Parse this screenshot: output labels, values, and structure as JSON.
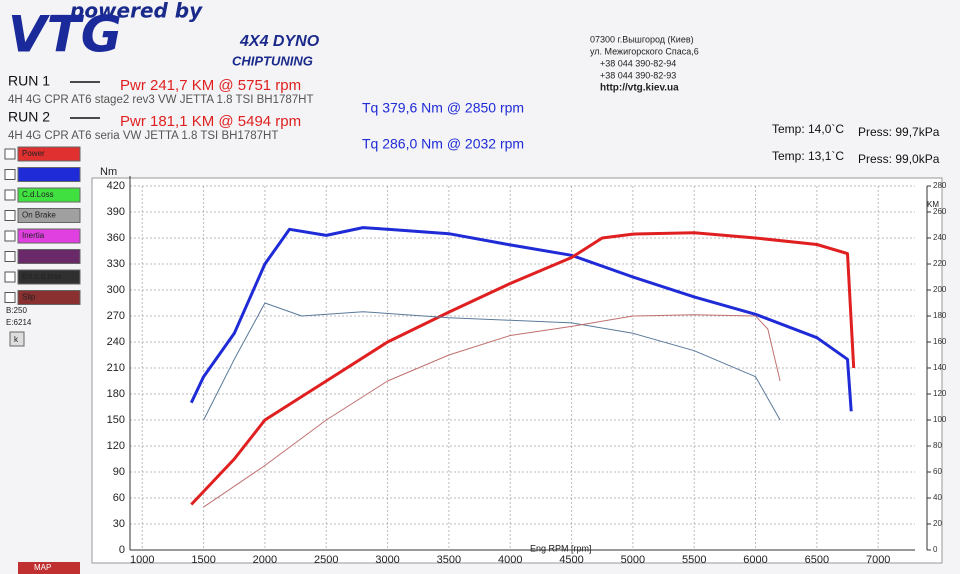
{
  "header": {
    "powered": "powered by",
    "logo": "VTG",
    "dyno": "4X4 DYNO",
    "chiptuning": "CHIPTUNING",
    "address": [
      "07300 г.Вышгород (Киев)",
      "ул. Межигорского Спаса,6",
      "+38 044 390-82-94",
      "+38 044 390-82-93",
      "http://vtg.kiev.ua"
    ]
  },
  "runs": [
    {
      "label": "RUN 1",
      "power": "Pwr  241,7 KM @ 5751 rpm",
      "torque": "Tq 379,6 Nm @ 2850 rpm",
      "desc": "4H 4G CPR  AT6  stage2 rev3 VW JETTA 1.8 TSI BH1787HT",
      "temp": "Temp: 14,0`C",
      "press": "Press: 99,7kPa"
    },
    {
      "label": "RUN 2",
      "power": "Pwr  181,1 KM @ 5494 rpm",
      "torque": "Tq 286,0 Nm @ 2032 rpm",
      "desc": "4H 4G CPR  AT6  seria VW JETTA 1.8 TSI BH1787HT",
      "temp": "Temp: 13,1`C",
      "press": "Press: 99,0kPa"
    }
  ],
  "panel": {
    "items": [
      {
        "label": "Power",
        "color": "#e03030"
      },
      {
        "label": "",
        "color": "#1f2bd6"
      },
      {
        "label": "C.d.Loss",
        "color": "#40e040"
      },
      {
        "label": "On Brake",
        "color": "#a0a0a0"
      },
      {
        "label": "Inertia",
        "color": "#e040e0"
      },
      {
        "label": "",
        "color": "#6a2a6a"
      },
      {
        "label": "Ert c.d.loss",
        "color": "#303030"
      },
      {
        "label": "Slip",
        "color": "#8a3030"
      }
    ],
    "b": "B:250",
    "e": "E:6214",
    "k": "k",
    "map": "MAP"
  },
  "chart_data": {
    "type": "line",
    "ylabel": "Nm",
    "y2label": "KM",
    "xlabel": "Eng RPM [rpm]",
    "grid": true,
    "xlim": [
      900,
      7300
    ],
    "xticks": [
      1000,
      1500,
      2000,
      2500,
      3000,
      3500,
      4000,
      4500,
      5000,
      5500,
      6000,
      6500,
      7000
    ],
    "ylim": [
      0,
      420
    ],
    "yticks": [
      0,
      30,
      60,
      90,
      120,
      150,
      180,
      210,
      240,
      270,
      300,
      330,
      360,
      390,
      420
    ],
    "y2lim": [
      0,
      280
    ],
    "y2ticks": [
      0,
      20,
      40,
      60,
      80,
      100,
      120,
      140,
      160,
      180,
      200,
      220,
      240,
      260,
      280
    ],
    "series": [
      {
        "color": "#1f2bd6",
        "width": 3,
        "x": [
          1400,
          1500,
          1750,
          2000,
          2200,
          2500,
          2800,
          3000,
          3500,
          4000,
          4500,
          5000,
          5500,
          6000,
          6500,
          6750,
          6780
        ],
        "values": [
          170,
          200,
          250,
          330,
          370,
          363,
          372,
          370,
          365,
          352,
          340,
          315,
          292,
          272,
          245,
          220,
          160
        ]
      },
      {
        "color": "#e02020",
        "width": 3,
        "axis": "y2",
        "x": [
          1400,
          1750,
          2000,
          2500,
          3000,
          3500,
          4000,
          4500,
          4750,
          5000,
          5500,
          5751,
          6000,
          6500,
          6750,
          6800
        ],
        "values": [
          35,
          70,
          100,
          130,
          160,
          183,
          205,
          225,
          240,
          243,
          244,
          242,
          240,
          235,
          228,
          140
        ]
      },
      {
        "color": "#5a7a9a",
        "width": 1,
        "x": [
          1500,
          1750,
          2000,
          2300,
          2800,
          3500,
          4000,
          4500,
          5000,
          5500,
          6000,
          6200
        ],
        "values": [
          150,
          220,
          285,
          270,
          275,
          268,
          265,
          262,
          250,
          230,
          200,
          150
        ]
      },
      {
        "color": "#c07070",
        "width": 1,
        "axis": "y2",
        "x": [
          1500,
          2000,
          2500,
          3000,
          3500,
          4000,
          4500,
          5000,
          5494,
          6000,
          6100,
          6200
        ],
        "values": [
          33,
          65,
          100,
          130,
          150,
          165,
          172,
          180,
          181,
          180,
          170,
          130
        ]
      }
    ]
  }
}
